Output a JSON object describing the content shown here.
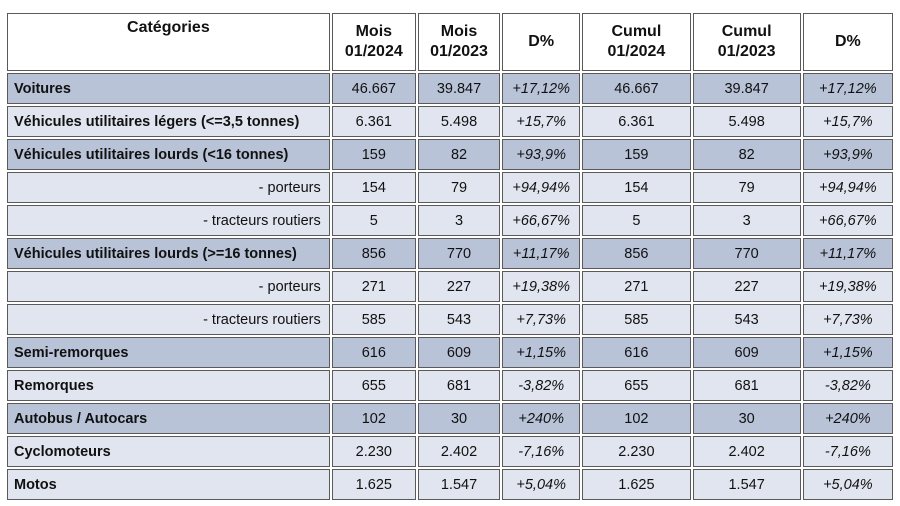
{
  "table": {
    "header": [
      [
        "Catégories"
      ],
      [
        "Mois",
        "01/2024"
      ],
      [
        "Mois",
        "01/2023"
      ],
      [
        "D%"
      ],
      [
        "Cumul",
        "01/2024"
      ],
      [
        "Cumul",
        "01/2023"
      ],
      [
        "D%"
      ]
    ],
    "rows": [
      [
        "Voitures",
        "46.667",
        "39.847",
        "+17,12%",
        "46.667",
        "39.847",
        "+17,12%"
      ],
      [
        "Véhicules utilitaires légers (<=3,5 tonnes)",
        "6.361",
        "5.498",
        "+15,7%",
        "6.361",
        "5.498",
        "+15,7%"
      ],
      [
        "Véhicules utilitaires lourds (<16 tonnes)",
        "159",
        "82",
        "+93,9%",
        "159",
        "82",
        "+93,9%"
      ],
      [
        "- porteurs",
        "154",
        "79",
        "+94,94%",
        "154",
        "79",
        "+94,94%"
      ],
      [
        "- tracteurs routiers",
        "5",
        "3",
        "+66,67%",
        "5",
        "3",
        "+66,67%"
      ],
      [
        "Véhicules utilitaires lourds (>=16 tonnes)",
        "856",
        "770",
        "+11,17%",
        "856",
        "770",
        "+11,17%"
      ],
      [
        "- porteurs",
        "271",
        "227",
        "+19,38%",
        "271",
        "227",
        "+19,38%"
      ],
      [
        "- tracteurs routiers",
        "585",
        "543",
        "+7,73%",
        "585",
        "543",
        "+7,73%"
      ],
      [
        "Semi-remorques",
        "616",
        "609",
        "+1,15%",
        "616",
        "609",
        "+1,15%"
      ],
      [
        "Remorques",
        "655",
        "681",
        "-3,82%",
        "655",
        "681",
        "-3,82%"
      ],
      [
        "Autobus / Autocars",
        "102",
        "30",
        "+240%",
        "102",
        "30",
        "+240%"
      ],
      [
        "Cyclomoteurs",
        "2.230",
        "2.402",
        "-7,16%",
        "2.230",
        "2.402",
        "-7,16%"
      ],
      [
        "Motos",
        "1.625",
        "1.547",
        "+5,04%",
        "1.625",
        "1.547",
        "+5,04%"
      ]
    ]
  }
}
